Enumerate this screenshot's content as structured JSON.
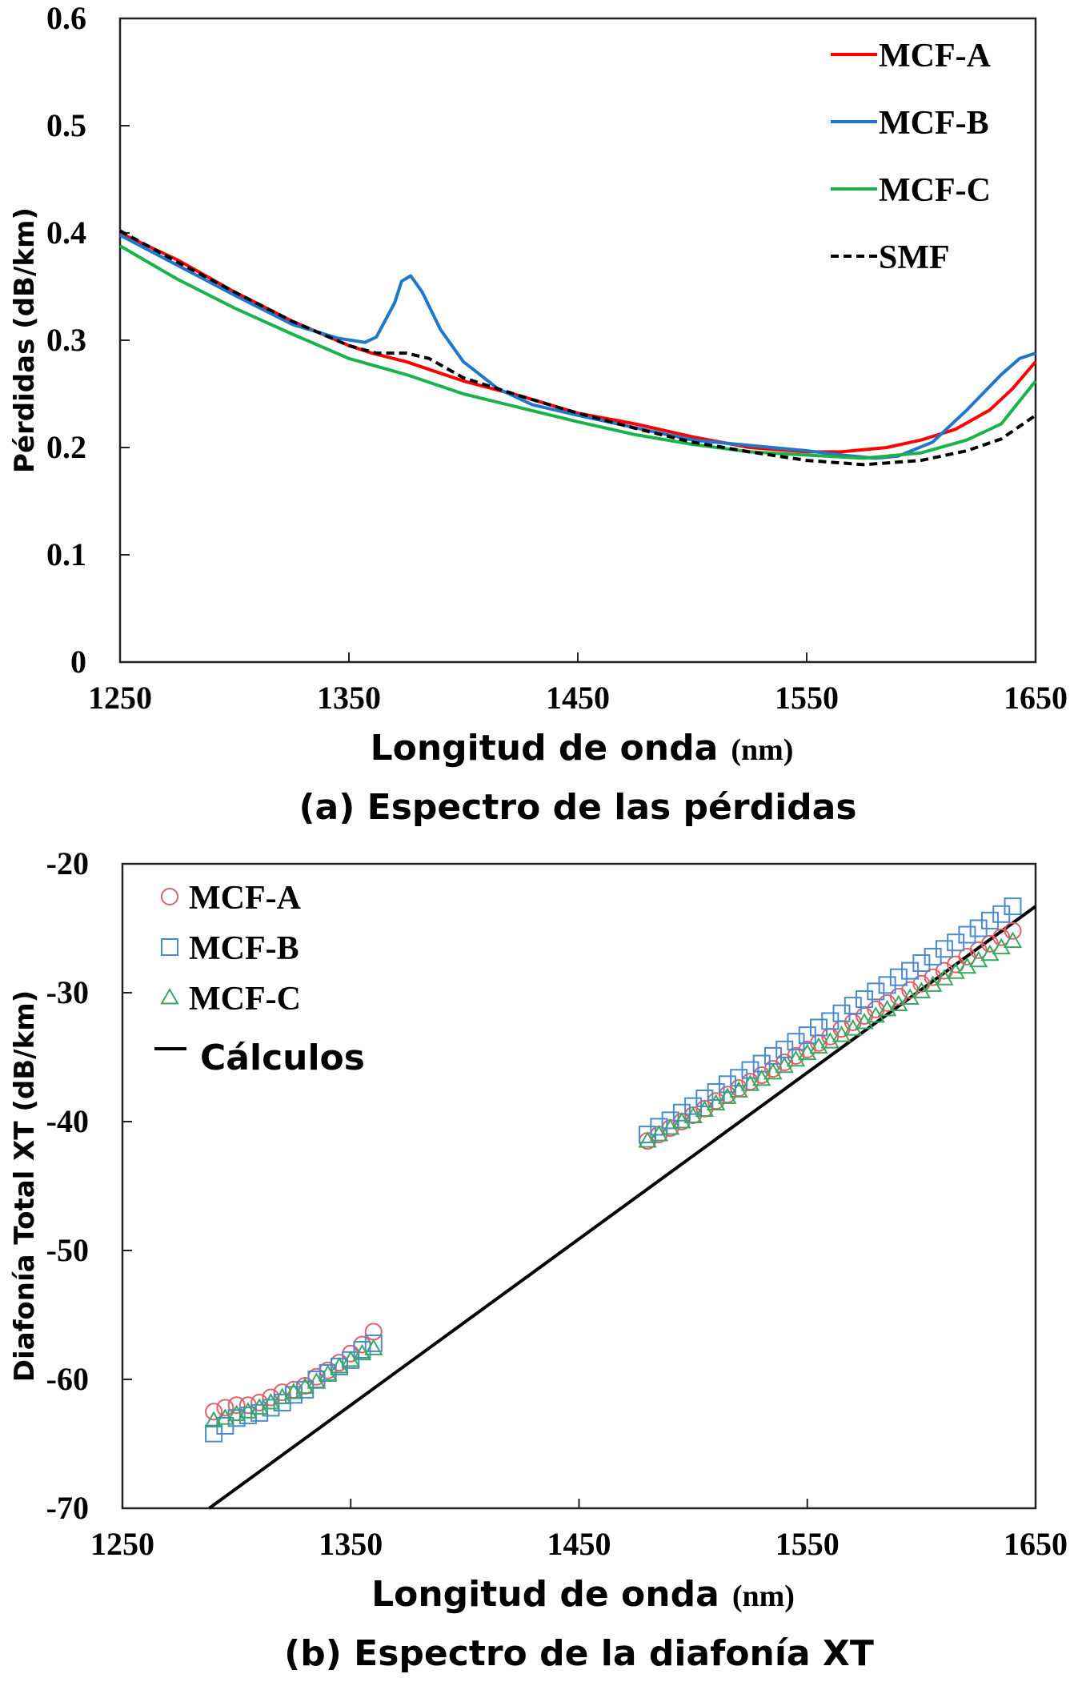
{
  "chart_data": [
    {
      "type": "line",
      "caption": "(a) Espectro de las pérdidas",
      "xlabel": "Longitud de onda",
      "xunit": "(nm)",
      "ylabel": "Pérdidas (dB/km)",
      "xlim": [
        1250,
        1650
      ],
      "ylim": [
        0,
        0.6
      ],
      "xticks": [
        "1250",
        "1350",
        "1450",
        "1550",
        "1650"
      ],
      "yticks": [
        "0",
        "0.1",
        "0.2",
        "0.3",
        "0.4",
        "0.5",
        "0.6"
      ],
      "legend_position": "top-right",
      "series": [
        {
          "name": "MCF-A",
          "color": "#ff0000",
          "dash": false,
          "x": [
            1250,
            1275,
            1300,
            1325,
            1350,
            1360,
            1375,
            1400,
            1425,
            1450,
            1475,
            1500,
            1525,
            1550,
            1565,
            1585,
            1600,
            1615,
            1630,
            1640,
            1650
          ],
          "y": [
            0.4,
            0.375,
            0.345,
            0.318,
            0.295,
            0.288,
            0.28,
            0.262,
            0.248,
            0.232,
            0.222,
            0.21,
            0.2,
            0.196,
            0.196,
            0.2,
            0.207,
            0.217,
            0.235,
            0.255,
            0.28
          ]
        },
        {
          "name": "MCF-B",
          "color": "#1f77c9",
          "dash": false,
          "x": [
            1250,
            1275,
            1300,
            1325,
            1345,
            1357,
            1362,
            1370,
            1373,
            1377,
            1382,
            1390,
            1400,
            1415,
            1430,
            1450,
            1500,
            1550,
            1565,
            1580,
            1590,
            1605,
            1620,
            1635,
            1643,
            1650
          ],
          "y": [
            0.398,
            0.37,
            0.342,
            0.315,
            0.302,
            0.298,
            0.303,
            0.335,
            0.355,
            0.36,
            0.345,
            0.31,
            0.28,
            0.255,
            0.24,
            0.23,
            0.207,
            0.197,
            0.193,
            0.19,
            0.192,
            0.205,
            0.235,
            0.268,
            0.283,
            0.288
          ]
        },
        {
          "name": "MCF-C",
          "color": "#19b34a",
          "dash": false,
          "x": [
            1250,
            1275,
            1300,
            1325,
            1350,
            1375,
            1400,
            1425,
            1450,
            1475,
            1500,
            1525,
            1550,
            1575,
            1600,
            1620,
            1635,
            1650
          ],
          "y": [
            0.388,
            0.357,
            0.33,
            0.306,
            0.283,
            0.268,
            0.25,
            0.237,
            0.224,
            0.212,
            0.203,
            0.196,
            0.193,
            0.19,
            0.195,
            0.207,
            0.222,
            0.262
          ]
        },
        {
          "name": "SMF",
          "color": "#000000",
          "dash": true,
          "x": [
            1250,
            1275,
            1300,
            1325,
            1350,
            1362,
            1375,
            1385,
            1400,
            1425,
            1450,
            1475,
            1500,
            1525,
            1550,
            1575,
            1600,
            1620,
            1635,
            1650
          ],
          "y": [
            0.402,
            0.373,
            0.345,
            0.318,
            0.295,
            0.288,
            0.288,
            0.283,
            0.265,
            0.248,
            0.232,
            0.218,
            0.205,
            0.196,
            0.188,
            0.184,
            0.188,
            0.197,
            0.208,
            0.23
          ]
        }
      ]
    },
    {
      "type": "scatter",
      "caption": "(b) Espectro de la diafonía XT",
      "xlabel": "Longitud de onda",
      "xunit": "(nm)",
      "ylabel": "Diafonía Total XT (dB/km)",
      "xlim": [
        1250,
        1650
      ],
      "ylim": [
        -70,
        -20
      ],
      "xticks": [
        "1250",
        "1350",
        "1450",
        "1550",
        "1650"
      ],
      "yticks": [
        "-70",
        "-60",
        "-50",
        "-40",
        "-30",
        "-20"
      ],
      "legend_position": "top-left",
      "x_group1": [
        1290,
        1295,
        1300,
        1305,
        1310,
        1315,
        1320,
        1325,
        1330,
        1335,
        1340,
        1345,
        1350,
        1355,
        1360
      ],
      "x_group2": [
        1480,
        1485,
        1490,
        1495,
        1500,
        1505,
        1510,
        1515,
        1520,
        1525,
        1530,
        1535,
        1540,
        1545,
        1550,
        1555,
        1560,
        1565,
        1570,
        1575,
        1580,
        1585,
        1590,
        1595,
        1600,
        1605,
        1610,
        1615,
        1620,
        1625,
        1630,
        1635,
        1640
      ],
      "series": [
        {
          "name": "MCF-A",
          "marker": "circle",
          "color": "#e0606a",
          "y_group1": [
            -62.5,
            -62.2,
            -62,
            -62,
            -61.8,
            -61.4,
            -61,
            -60.8,
            -60.5,
            -59.8,
            -59.3,
            -58.7,
            -58,
            -57.3,
            -56.3
          ],
          "y_group2": [
            -41.5,
            -41.0,
            -40.5,
            -40.0,
            -39.5,
            -39.0,
            -38.4,
            -37.9,
            -37.4,
            -36.9,
            -36.4,
            -35.9,
            -35.4,
            -34.9,
            -34.4,
            -33.9,
            -33.4,
            -32.8,
            -32.3,
            -31.8,
            -31.3,
            -30.8,
            -30.3,
            -29.8,
            -29.3,
            -28.8,
            -28.3,
            -27.8,
            -27.2,
            -26.7,
            -26.2,
            -25.7,
            -25.2
          ]
        },
        {
          "name": "MCF-B",
          "marker": "square",
          "color": "#4a8ad0",
          "y_group1": [
            -64.2,
            -63.6,
            -63,
            -62.8,
            -62.6,
            -62.2,
            -61.8,
            -61.2,
            -60.8,
            -60,
            -59.5,
            -59,
            -58.5,
            -57.7,
            -57.2
          ],
          "y_group2": [
            -41.0,
            -40.4,
            -39.9,
            -39.3,
            -38.8,
            -38.2,
            -37.7,
            -37.1,
            -36.6,
            -36.0,
            -35.5,
            -34.9,
            -34.4,
            -33.8,
            -33.3,
            -32.7,
            -32.2,
            -31.6,
            -31.0,
            -30.5,
            -29.9,
            -29.4,
            -28.8,
            -28.3,
            -27.7,
            -27.2,
            -26.6,
            -26.1,
            -25.5,
            -25.0,
            -24.4,
            -23.9,
            -23.3
          ]
        },
        {
          "name": "MCF-C",
          "marker": "triangle",
          "color": "#3aa860",
          "y_group1": [
            -63.2,
            -63,
            -62.7,
            -62.5,
            -62.2,
            -61.8,
            -61.4,
            -61,
            -60.6,
            -60.2,
            -59.6,
            -59,
            -58.5,
            -58,
            -57.6
          ],
          "y_group2": [
            -41.5,
            -41.0,
            -40.5,
            -40.0,
            -39.6,
            -39.1,
            -38.6,
            -38.1,
            -37.6,
            -37.1,
            -36.7,
            -36.2,
            -35.7,
            -35.2,
            -34.7,
            -34.2,
            -33.8,
            -33.3,
            -32.8,
            -32.3,
            -31.8,
            -31.3,
            -30.9,
            -30.4,
            -29.9,
            -29.4,
            -28.9,
            -28.4,
            -28.0,
            -27.5,
            -27.0,
            -26.5,
            -26.0
          ]
        }
      ],
      "calculation": {
        "name": "Cálculos",
        "color": "#000000",
        "x": [
          1288,
          1650
        ],
        "y": [
          -70,
          -23.3
        ]
      }
    }
  ]
}
